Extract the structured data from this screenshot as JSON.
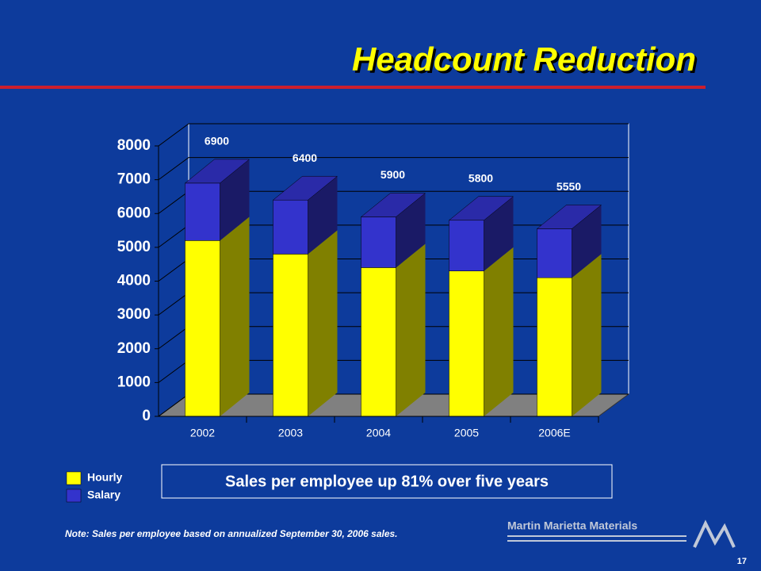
{
  "chart_data": {
    "type": "bar",
    "stacked": true,
    "title": "Headcount Reduction",
    "categories": [
      "2002",
      "2003",
      "2004",
      "2005",
      "2006E"
    ],
    "series": [
      {
        "name": "Hourly",
        "color": "#ffff00",
        "side_color": "#808000",
        "values": [
          5200,
          4800,
          4400,
          4300,
          4100
        ]
      },
      {
        "name": "Salary",
        "color": "#3333cc",
        "side_color": "#1a1a66",
        "values": [
          1700,
          1600,
          1500,
          1500,
          1450
        ]
      }
    ],
    "totals": [
      6900,
      6400,
      5900,
      5800,
      5550
    ],
    "ylim": [
      0,
      8000
    ],
    "yticks": [
      0,
      1000,
      2000,
      3000,
      4000,
      5000,
      6000,
      7000,
      8000
    ],
    "grid": true,
    "annotation": "Sales per employee up 81% over five years",
    "note": "Note:  Sales per employee based on annualized September 30, 2006 sales."
  },
  "footer": {
    "company": "Martin Marietta Materials",
    "page_number": "17"
  }
}
